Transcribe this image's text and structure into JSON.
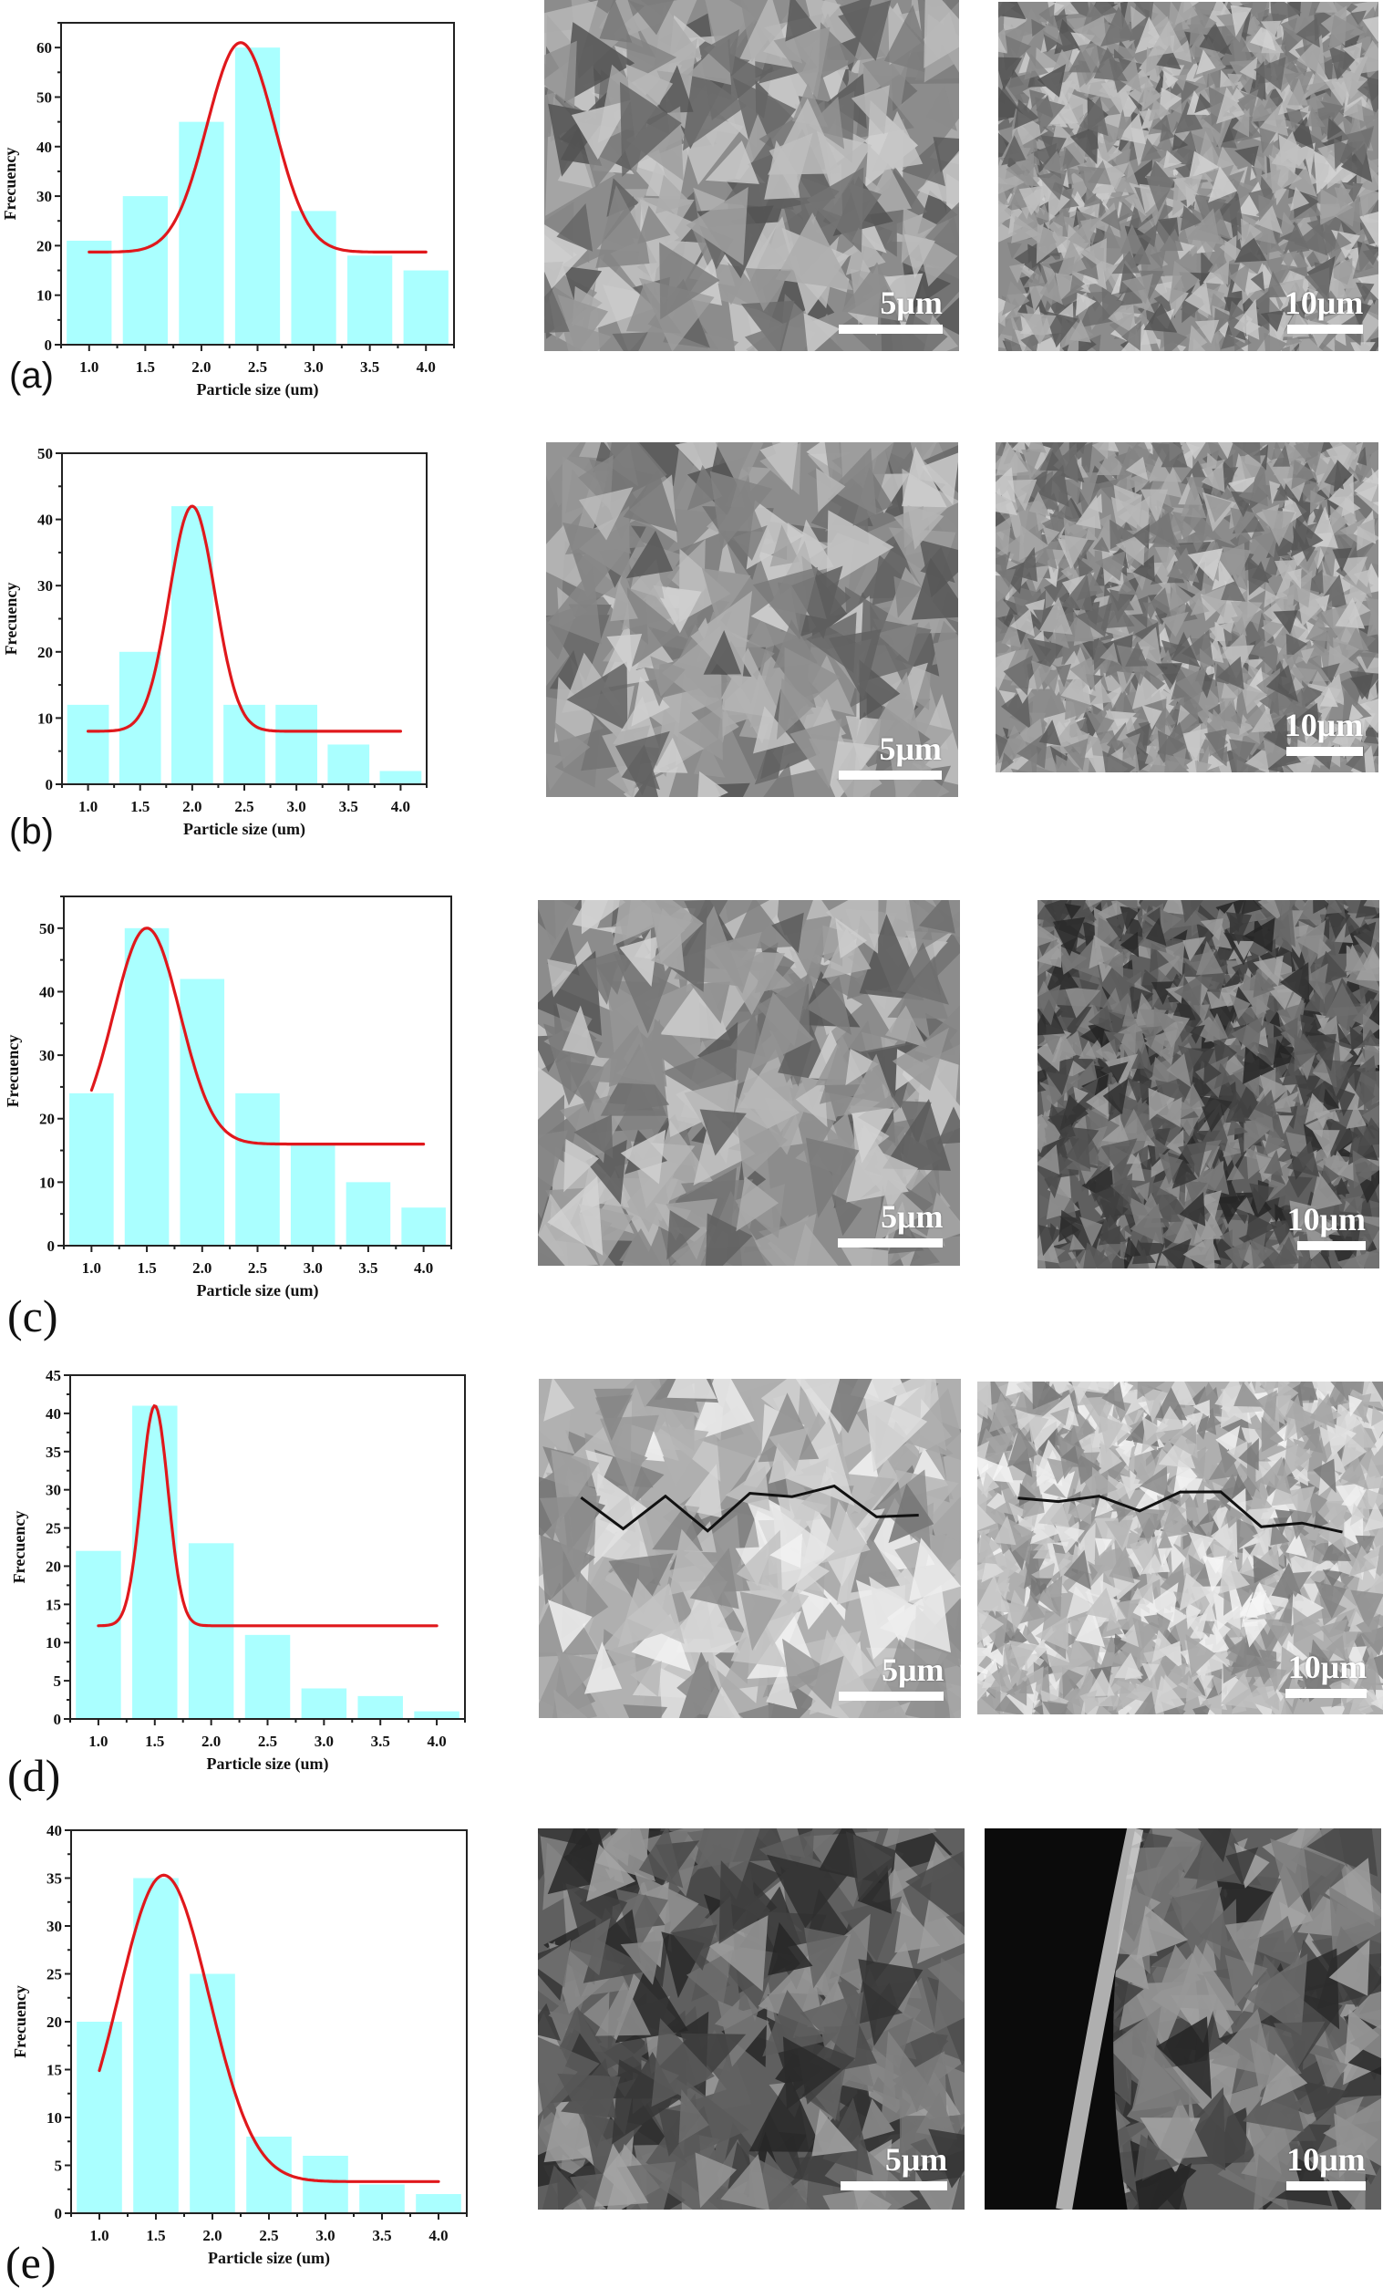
{
  "colors": {
    "bar": "#AAFFFF",
    "curve": "#E0181C",
    "axis": "#222222"
  },
  "chart_data": [
    {
      "id": "a",
      "type": "bar",
      "title": "",
      "panel_label": "(a)",
      "xlabel": "Particle size (um)",
      "ylabel": "Frecuency",
      "categories": [
        "1.0",
        "1.5",
        "2.0",
        "2.5",
        "3.0",
        "3.5",
        "4.0"
      ],
      "x": [
        1.0,
        1.5,
        2.0,
        2.5,
        3.0,
        3.5,
        4.0
      ],
      "values": [
        21,
        30,
        45,
        60,
        27,
        18,
        15
      ],
      "ylim": [
        0,
        65
      ],
      "yticks": [
        0,
        10,
        20,
        30,
        40,
        50,
        60
      ],
      "fit": {
        "type": "gaussian",
        "baseline": 18.7,
        "peak_x": 2.35,
        "peak_y": 61,
        "sigma": 0.3,
        "x_range": [
          1.0,
          4.0
        ]
      },
      "grid": false,
      "legend": null
    },
    {
      "id": "b",
      "type": "bar",
      "title": "",
      "panel_label": "(b)",
      "xlabel": "Particle size (um)",
      "ylabel": "Frecuency",
      "categories": [
        "1.0",
        "1.5",
        "2.0",
        "2.5",
        "3.0",
        "3.5",
        "4.0"
      ],
      "x": [
        1.0,
        1.5,
        2.0,
        2.5,
        3.0,
        3.5,
        4.0
      ],
      "values": [
        12,
        20,
        42,
        12,
        12,
        6,
        2
      ],
      "ylim": [
        0,
        50
      ],
      "yticks": [
        0,
        10,
        20,
        30,
        40,
        50
      ],
      "fit": {
        "type": "gaussian",
        "baseline": 8,
        "peak_x": 2.0,
        "peak_y": 42,
        "sigma": 0.22,
        "x_range": [
          1.0,
          4.0
        ]
      },
      "grid": false,
      "legend": null
    },
    {
      "id": "c",
      "type": "bar",
      "title": "",
      "panel_label": "(c)",
      "xlabel": "Particle size (um)",
      "ylabel": "Frecuency",
      "categories": [
        "1.0",
        "1.5",
        "2.0",
        "2.5",
        "3.0",
        "3.5",
        "4.0"
      ],
      "x": [
        1.0,
        1.5,
        2.0,
        2.5,
        3.0,
        3.5,
        4.0
      ],
      "values": [
        24,
        50,
        42,
        24,
        16,
        10,
        6
      ],
      "ylim": [
        0,
        55
      ],
      "yticks": [
        0,
        10,
        20,
        30,
        40,
        50
      ],
      "fit": {
        "type": "gaussian",
        "baseline": 16,
        "peak_x": 1.5,
        "peak_y": 50,
        "sigma": 0.3,
        "x_range": [
          1.0,
          4.0
        ]
      },
      "grid": false,
      "legend": null
    },
    {
      "id": "d",
      "type": "bar",
      "title": "",
      "panel_label": "(d)",
      "xlabel": "Particle size (um)",
      "ylabel": "Frecuency",
      "categories": [
        "1.0",
        "1.5",
        "2.0",
        "2.5",
        "3.0",
        "3.5",
        "4.0"
      ],
      "x": [
        1.0,
        1.5,
        2.0,
        2.5,
        3.0,
        3.5,
        4.0
      ],
      "values": [
        22,
        41,
        23,
        11,
        4,
        3,
        1
      ],
      "ylim": [
        0,
        45
      ],
      "yticks": [
        0,
        5,
        10,
        15,
        20,
        25,
        30,
        35,
        40,
        45
      ],
      "fit": {
        "type": "gaussian",
        "baseline": 12.2,
        "peak_x": 1.5,
        "peak_y": 41,
        "sigma": 0.12,
        "x_range": [
          1.0,
          4.0
        ]
      },
      "grid": false,
      "legend": null
    },
    {
      "id": "e",
      "type": "bar",
      "title": "",
      "panel_label": "(e)",
      "xlabel": "Particle size (um)",
      "ylabel": "Frecuency",
      "categories": [
        "1.0",
        "1.5",
        "2.0",
        "2.5",
        "3.0",
        "3.5",
        "4.0"
      ],
      "x": [
        1.0,
        1.5,
        2.0,
        2.5,
        3.0,
        3.5,
        4.0
      ],
      "values": [
        20,
        35,
        25,
        8,
        6,
        3,
        2
      ],
      "ylim": [
        0,
        40
      ],
      "yticks": [
        0,
        5,
        10,
        15,
        20,
        25,
        30,
        35,
        40
      ],
      "fit": {
        "type": "gaussian",
        "baseline": 3.3,
        "peak_x": 1.57,
        "peak_y": 35.3,
        "sigma": 0.4,
        "x_range": [
          1.0,
          4.0
        ]
      },
      "grid": false,
      "legend": null
    }
  ],
  "sem_images": [
    {
      "row": "a",
      "position": "middle",
      "scale_label": "5μm",
      "tone": "medium",
      "density": "coarse"
    },
    {
      "row": "a",
      "position": "right",
      "scale_label": "10μm",
      "tone": "medium",
      "density": "fine"
    },
    {
      "row": "b",
      "position": "middle",
      "scale_label": "5μm",
      "tone": "medium",
      "density": "coarse"
    },
    {
      "row": "b",
      "position": "right",
      "scale_label": "10μm",
      "tone": "medium",
      "density": "fine"
    },
    {
      "row": "c",
      "position": "middle",
      "scale_label": "5μm",
      "tone": "medium",
      "density": "coarse"
    },
    {
      "row": "c",
      "position": "right",
      "scale_label": "10μm",
      "tone": "dark",
      "density": "fine"
    },
    {
      "row": "d",
      "position": "middle",
      "scale_label": "5μm",
      "tone": "light",
      "density": "coarse",
      "feature": "cracks"
    },
    {
      "row": "d",
      "position": "right",
      "scale_label": "10μm",
      "tone": "light",
      "density": "fine",
      "feature": "cracks"
    },
    {
      "row": "e",
      "position": "middle",
      "scale_label": "5μm",
      "tone": "dark",
      "density": "coarse"
    },
    {
      "row": "e",
      "position": "right",
      "scale_label": "10μm",
      "tone": "dark",
      "density": "coarse",
      "feature": "cross-section edge"
    }
  ]
}
